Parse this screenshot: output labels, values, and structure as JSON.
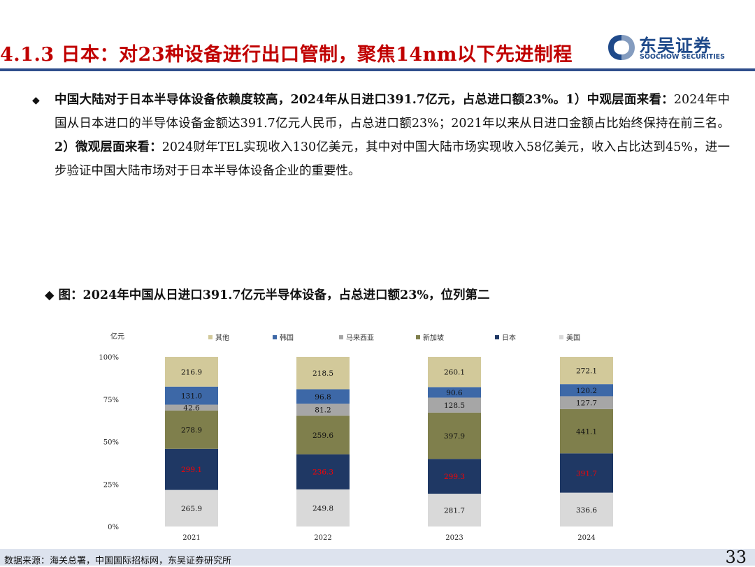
{
  "header": {
    "title": "4.1.3 日本：对23种设备进行出口管制，聚焦14nm以下先进制程",
    "logo_cn": "东吴证券",
    "logo_en": "SOOCHOW SECURITIES",
    "colors": {
      "title": "#c00000",
      "rule": "#2f4e8c",
      "logo": "#1f4a8a"
    }
  },
  "bullet": {
    "lead": "中国大陆对于日本半导体设备依赖度较高，2024年从日进口391.7亿元，占总进口额23%。",
    "p1_head": "1）中观层面来看：",
    "p1_text": "2024年中国从日本进口的半导体设备金额达391.7亿元人民币，占总进口额23%；2021年以来从日进口金额占比始终保持在前三名。",
    "p2_head": "2）微观层面来看：",
    "p2_text": "2024财年TEL实现收入130亿美元，其中对中国大陆市场实现收入58亿美元，收入占比达到45%，进一步验证中国大陆市场对于日本半导体设备企业的重要性。"
  },
  "figure_caption": "◆ 图：2024年中国从日进口391.7亿元半导体设备，占总进口额23%，位列第二",
  "chart_data": {
    "type": "bar",
    "stacked": "percent",
    "unit_label": "亿元",
    "categories": [
      "2021",
      "2022",
      "2023",
      "2024"
    ],
    "yticks": [
      "0%",
      "25%",
      "50%",
      "75%",
      "100%"
    ],
    "legend_placement": "top",
    "series": [
      {
        "name": "美国",
        "color": "#d9d9d9",
        "label_color": "#111111",
        "values": [
          265.9,
          249.8,
          281.7,
          336.6
        ]
      },
      {
        "name": "日本",
        "color": "#1f3864",
        "label_color": "#ff0000",
        "values": [
          299.1,
          236.3,
          299.3,
          391.7
        ]
      },
      {
        "name": "新加坡",
        "color": "#7f7f4c",
        "label_color": "#111111",
        "values": [
          278.9,
          259.6,
          397.9,
          441.1
        ]
      },
      {
        "name": "马来西亚",
        "color": "#a6a6a6",
        "label_color": "#111111",
        "values": [
          42.6,
          81.2,
          128.5,
          127.7
        ]
      },
      {
        "name": "韩国",
        "color": "#3d68a7",
        "label_color": "#111111",
        "values": [
          131.0,
          96.8,
          90.6,
          120.2
        ]
      },
      {
        "name": "其他",
        "color": "#d2c99a",
        "label_color": "#111111",
        "values": [
          216.9,
          218.5,
          260.1,
          272.1
        ]
      }
    ],
    "legend_order": [
      "其他",
      "韩国",
      "马来西亚",
      "新加坡",
      "日本",
      "美国"
    ]
  },
  "footer": {
    "source": "数据来源：海关总署，中国国际招标网，东吴证券研究所",
    "page": "33"
  }
}
